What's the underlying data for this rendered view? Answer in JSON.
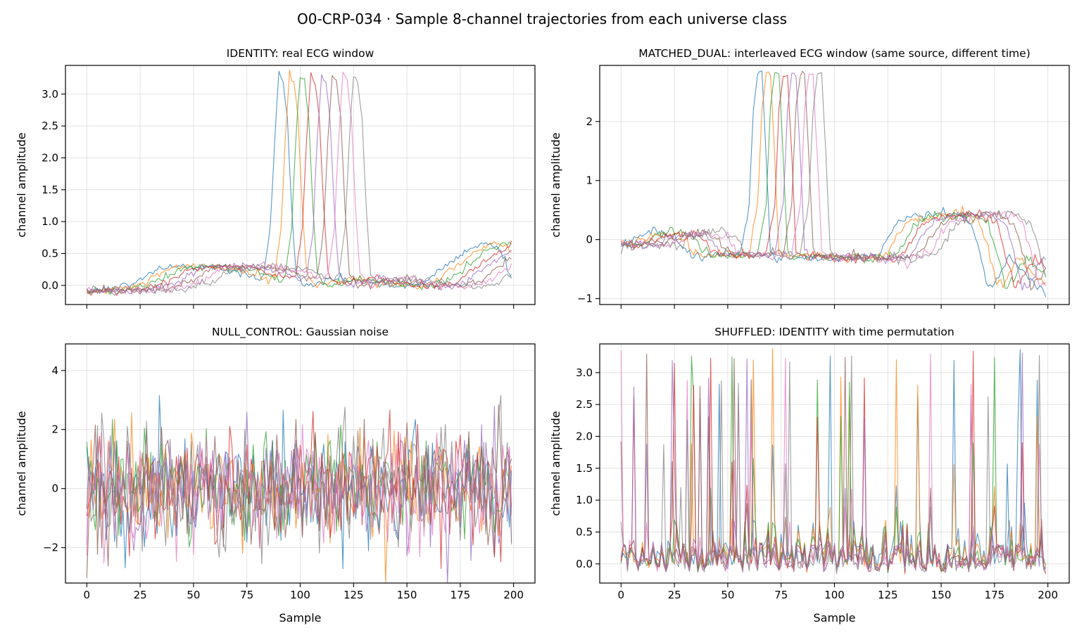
{
  "suptitle": "O0-CRP-034 · Sample 8-channel trajectories from each universe class",
  "chart_data": [
    {
      "type": "line",
      "title": "IDENTITY: real ECG window",
      "xlabel": "",
      "ylabel": "channel amplitude",
      "xlim": [
        -10,
        210
      ],
      "ylim": [
        -0.3,
        3.45
      ],
      "xticks": [
        0,
        25,
        50,
        75,
        100,
        125,
        150,
        175,
        200
      ],
      "show_xtick_labels": false,
      "yticks": [
        0.0,
        0.5,
        1.0,
        1.5,
        2.0,
        2.5,
        3.0
      ],
      "ytick_labels": [
        "0.0",
        "0.5",
        "1.0",
        "1.5",
        "2.0",
        "2.5",
        "3.0"
      ],
      "grid": true,
      "n_channels": 8,
      "series_note": "8 channels, each a copy of the same ECG window shifted by 5 samples",
      "ecg_template": {
        "x": [
          0,
          12,
          20,
          26,
          34,
          52,
          62,
          72,
          80,
          83,
          86,
          88,
          90,
          92,
          94,
          96,
          98,
          102,
          110,
          120,
          130,
          150,
          158,
          166,
          176,
          186,
          192,
          196,
          199
        ],
        "y": [
          -0.08,
          -0.05,
          0.02,
          0.1,
          0.28,
          0.3,
          0.27,
          0.2,
          0.1,
          0.15,
          0.9,
          2.3,
          3.3,
          3.2,
          2.6,
          1.2,
          0.2,
          0.0,
          0.05,
          0.12,
          0.05,
          -0.02,
          0.05,
          0.25,
          0.5,
          0.68,
          0.62,
          0.4,
          0.05
        ]
      },
      "channel_shift": 5,
      "noise": 0.03
    },
    {
      "type": "line",
      "title": "MATCHED_DUAL: interleaved ECG window (same source, different time)",
      "xlabel": "",
      "ylabel": "channel amplitude",
      "xlim": [
        -10,
        210
      ],
      "ylim": [
        -1.1,
        2.95
      ],
      "xticks": [
        0,
        25,
        50,
        75,
        100,
        125,
        150,
        175,
        200
      ],
      "show_xtick_labels": false,
      "yticks": [
        -1,
        0,
        1,
        2
      ],
      "ytick_labels": [
        "−1",
        "0",
        "1",
        "2"
      ],
      "grid": true,
      "n_channels": 8,
      "series_note": "8 channels, interleaved copies shifted by 4 samples",
      "ecg_template": {
        "x": [
          0,
          8,
          16,
          26,
          30,
          36,
          56,
          60,
          62,
          64,
          66,
          68,
          70,
          72,
          90,
          110,
          120,
          130,
          140,
          156,
          164,
          168,
          172,
          176,
          182,
          190,
          199
        ],
        "y": [
          -0.08,
          0.05,
          0.12,
          0.05,
          -0.2,
          -0.28,
          -0.25,
          0.6,
          2.2,
          2.8,
          2.8,
          1.4,
          -0.2,
          -0.28,
          -0.3,
          -0.33,
          -0.25,
          0.3,
          0.4,
          0.45,
          0.3,
          -0.2,
          -0.8,
          -0.7,
          -0.3,
          -0.6,
          -0.9
        ]
      },
      "channel_shift": 4,
      "noise": 0.04
    },
    {
      "type": "line",
      "title": "NULL_CONTROL: Gaussian noise",
      "xlabel": "Sample",
      "ylabel": "channel amplitude",
      "xlim": [
        -10,
        210
      ],
      "ylim": [
        -3.2,
        4.9
      ],
      "xticks": [
        0,
        25,
        50,
        75,
        100,
        125,
        150,
        175,
        200
      ],
      "xtick_labels": [
        "0",
        "25",
        "50",
        "75",
        "100",
        "125",
        "150",
        "175",
        "200"
      ],
      "show_xtick_labels": true,
      "yticks": [
        -2,
        0,
        2,
        4
      ],
      "ytick_labels": [
        "−2",
        "0",
        "2",
        "4"
      ],
      "grid": true,
      "n_channels": 8,
      "series_note": "8 channels of standard Gaussian noise, 200 samples each",
      "gauss_sigma": 1.0
    },
    {
      "type": "line",
      "title": "SHUFFLED: IDENTITY with time permutation",
      "xlabel": "Sample",
      "ylabel": "channel amplitude",
      "xlim": [
        -10,
        210
      ],
      "ylim": [
        -0.3,
        3.45
      ],
      "xticks": [
        0,
        25,
        50,
        75,
        100,
        125,
        150,
        175,
        200
      ],
      "xtick_labels": [
        "0",
        "25",
        "50",
        "75",
        "100",
        "125",
        "150",
        "175",
        "200"
      ],
      "show_xtick_labels": true,
      "yticks": [
        0.0,
        0.5,
        1.0,
        1.5,
        2.0,
        2.5,
        3.0
      ],
      "ytick_labels": [
        "0.0",
        "0.5",
        "1.0",
        "1.5",
        "2.0",
        "2.5",
        "3.0"
      ],
      "grid": true,
      "n_channels": 8,
      "series_note": "IDENTITY channels with a random time permutation",
      "permute_of": 0
    }
  ],
  "colors": [
    "#1f77b4",
    "#ff7f0e",
    "#2ca02c",
    "#d62728",
    "#9467bd",
    "#8c564b",
    "#e377c2",
    "#7f7f7f"
  ]
}
